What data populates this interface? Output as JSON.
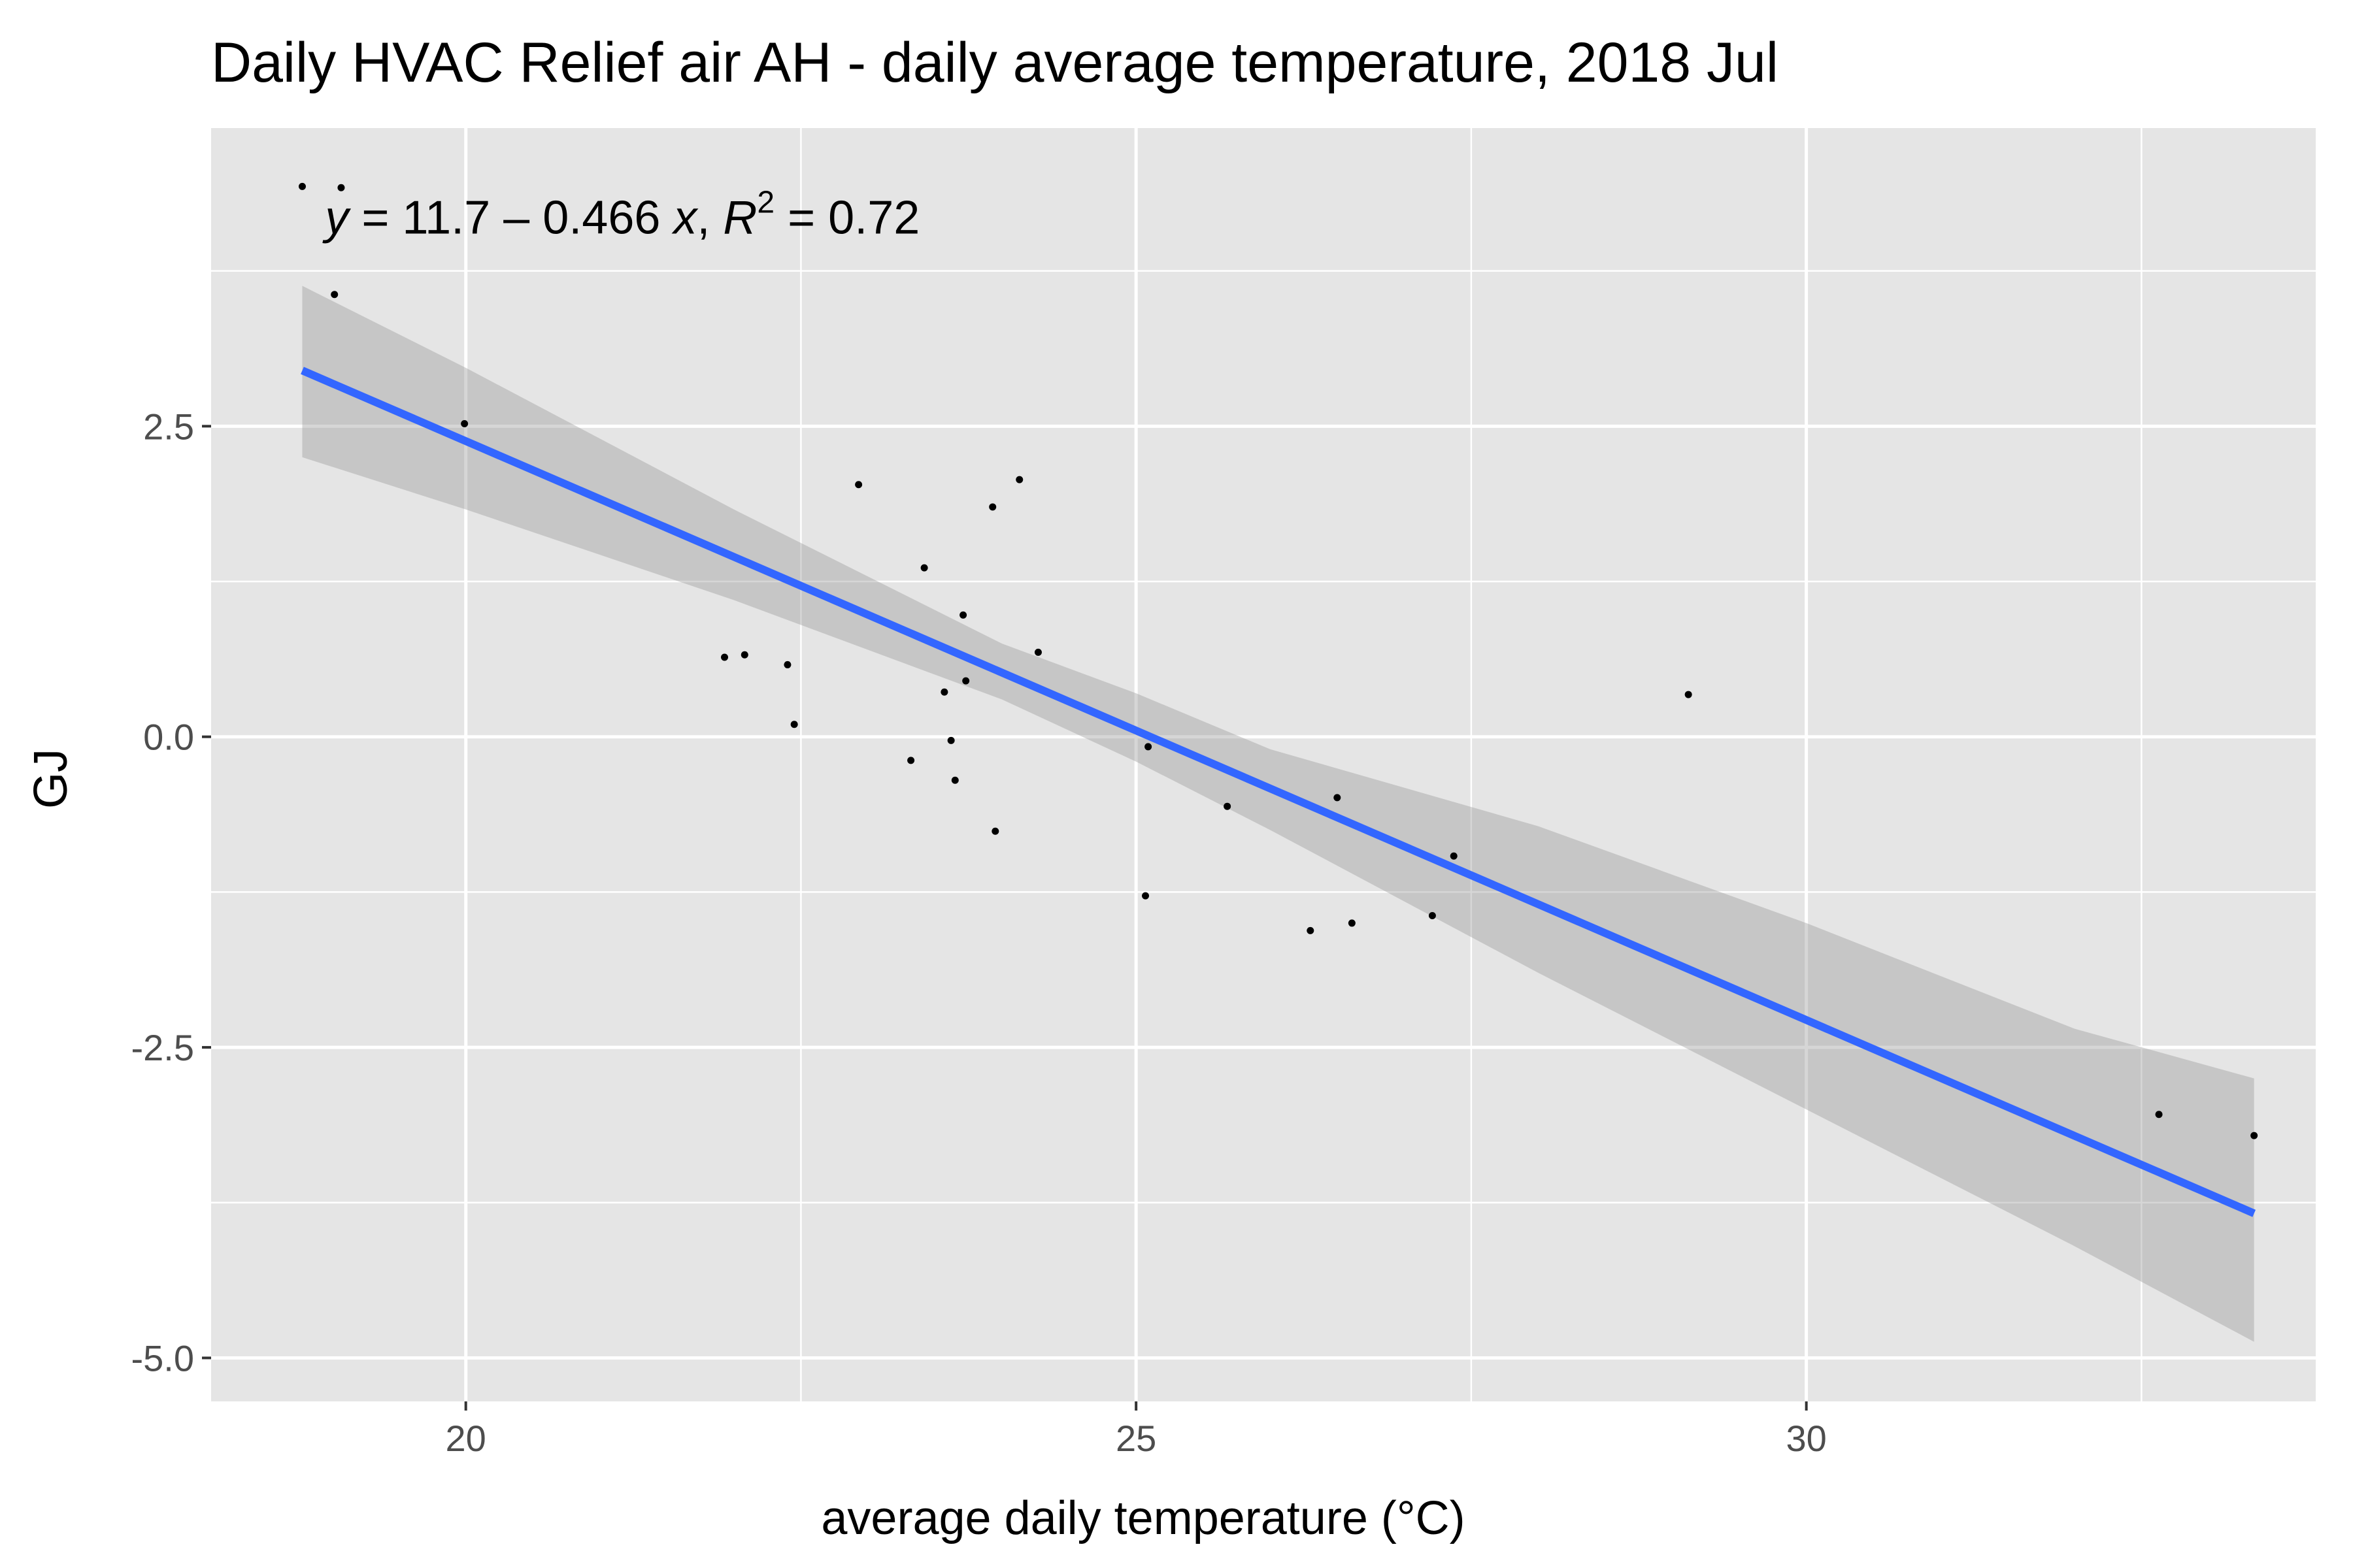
{
  "chart_data": {
    "type": "scatter",
    "title": "Daily HVAC Relief air AH - daily average temperature, 2018 Jul",
    "xlabel": "average daily temperature (°C)",
    "ylabel": "GJ",
    "xlim": [
      18.1,
      33.8
    ],
    "ylim": [
      -5.35,
      4.9
    ],
    "x_ticks": [
      20,
      25,
      30
    ],
    "x_tick_labels": [
      "20",
      "25",
      "30"
    ],
    "y_ticks": [
      2.5,
      0.0,
      -2.5,
      -5.0
    ],
    "y_tick_labels": [
      "2.5",
      "0.0",
      "-2.5",
      "-5.0"
    ],
    "grid": true,
    "series": [
      {
        "type": "points",
        "points": [
          {
            "x": 18.78,
            "y": 4.43
          },
          {
            "x": 19.07,
            "y": 4.42
          },
          {
            "x": 19.02,
            "y": 3.56
          },
          {
            "x": 19.99,
            "y": 2.52
          },
          {
            "x": 21.93,
            "y": 0.64
          },
          {
            "x": 22.08,
            "y": 0.66
          },
          {
            "x": 22.4,
            "y": 0.58
          },
          {
            "x": 22.45,
            "y": 0.1
          },
          {
            "x": 22.93,
            "y": 2.03
          },
          {
            "x": 23.32,
            "y": -0.19
          },
          {
            "x": 23.42,
            "y": 1.36
          },
          {
            "x": 23.57,
            "y": 0.36
          },
          {
            "x": 23.62,
            "y": -0.03
          },
          {
            "x": 23.65,
            "y": -0.35
          },
          {
            "x": 23.71,
            "y": 0.98
          },
          {
            "x": 23.73,
            "y": 0.45
          },
          {
            "x": 23.93,
            "y": 1.85
          },
          {
            "x": 23.95,
            "y": -0.76
          },
          {
            "x": 24.13,
            "y": 2.07
          },
          {
            "x": 24.27,
            "y": 0.68
          },
          {
            "x": 25.07,
            "y": -1.28
          },
          {
            "x": 25.09,
            "y": -0.08
          },
          {
            "x": 25.68,
            "y": -0.56
          },
          {
            "x": 26.3,
            "y": -1.56
          },
          {
            "x": 26.5,
            "y": -0.49
          },
          {
            "x": 26.61,
            "y": -1.5
          },
          {
            "x": 27.21,
            "y": -1.44
          },
          {
            "x": 27.37,
            "y": -0.96
          },
          {
            "x": 29.12,
            "y": 0.34
          },
          {
            "x": 32.63,
            "y": -3.04
          },
          {
            "x": 33.34,
            "y": -3.21
          }
        ]
      }
    ],
    "fit_line": {
      "intercept": 11.7,
      "slope": -0.466,
      "x_range": [
        18.78,
        33.34
      ],
      "color": "#3366ff"
    },
    "confidence_band": {
      "x": [
        18.78,
        20,
        22,
        24,
        25,
        26,
        28,
        30,
        32,
        33.34
      ],
      "lower": [
        2.25,
        1.83,
        1.1,
        0.3,
        -0.2,
        -0.75,
        -1.9,
        -3.0,
        -4.1,
        -4.87
      ],
      "upper": [
        3.63,
        2.97,
        1.83,
        0.75,
        0.35,
        -0.1,
        -0.72,
        -1.5,
        -2.35,
        -2.75
      ],
      "color": "#999999"
    },
    "annotation": {
      "y_var": "y",
      "equation": " = 11.7 – 0.466 ",
      "x_var": "x",
      "sep": ", ",
      "r_var": "R",
      "r_sup": "2",
      "r_value": " = 0.72",
      "at": {
        "x": 18.95,
        "y": 4.05
      }
    },
    "colors": {
      "panel": "#e5e5e5",
      "grid_major": "#ffffff",
      "point": "#000000",
      "tick": "#333333"
    }
  }
}
